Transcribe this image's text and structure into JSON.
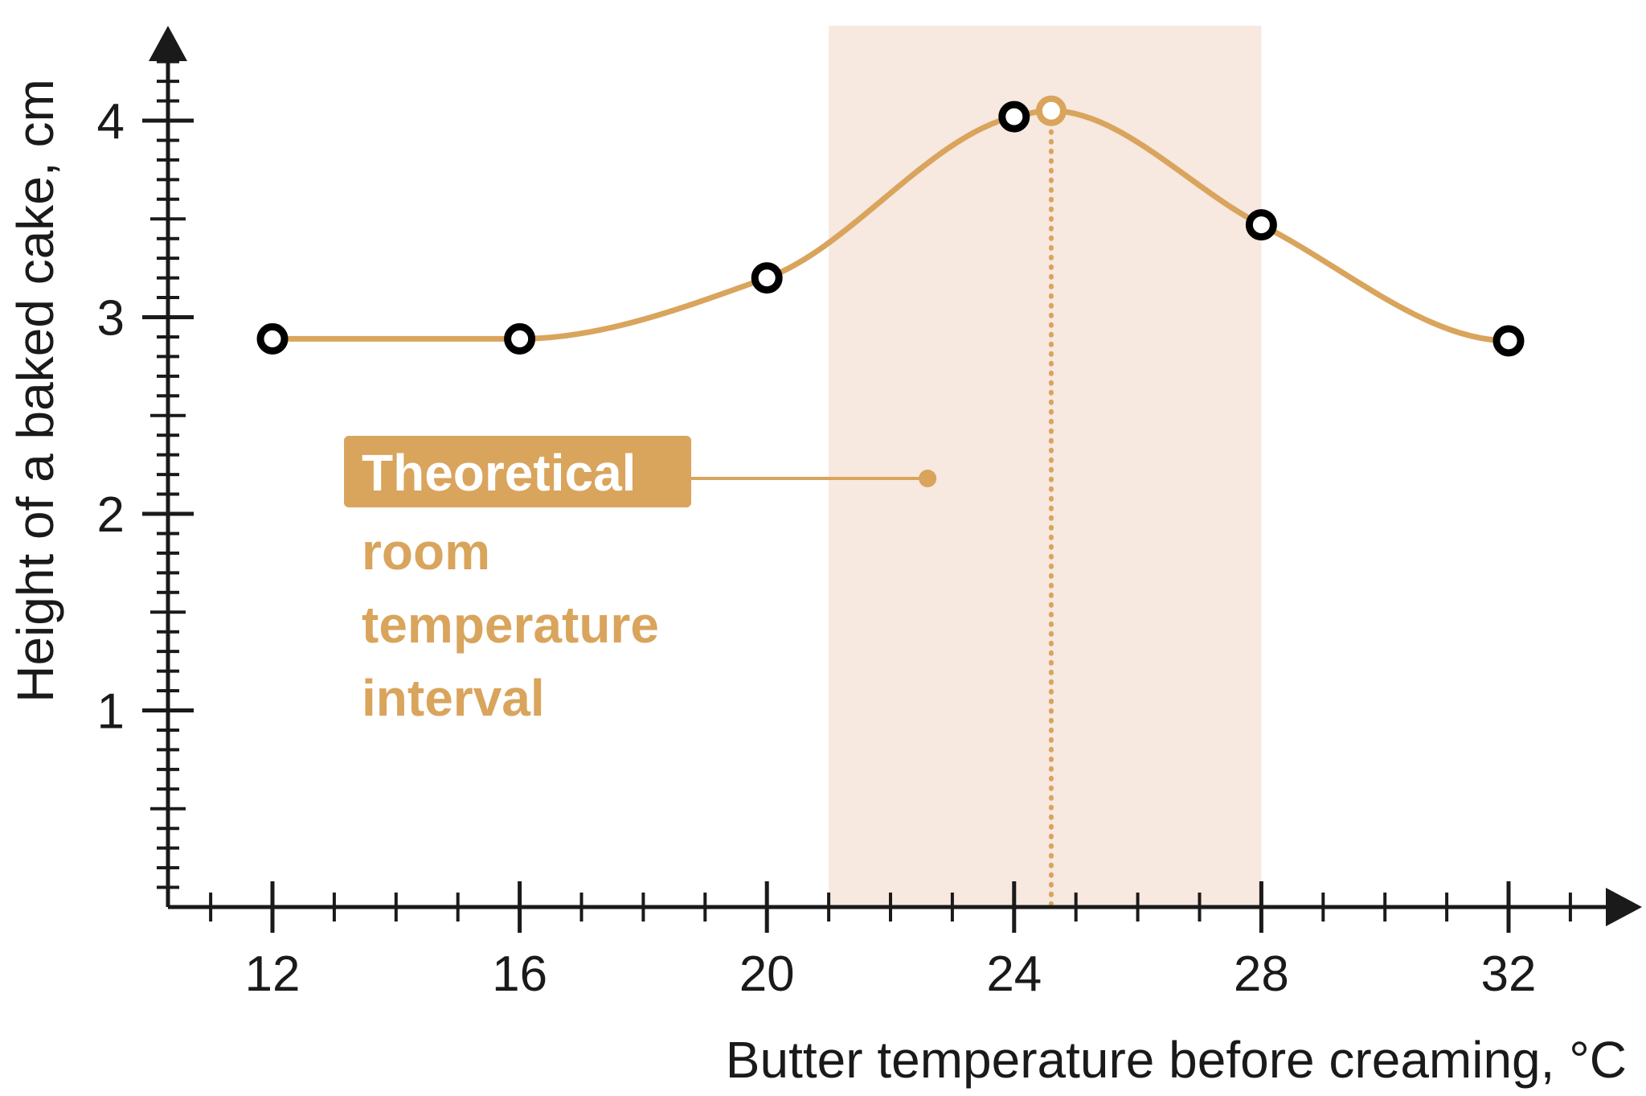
{
  "chart_data": {
    "type": "line",
    "title": "",
    "xlabel": "Butter temperature before creaming, °C",
    "ylabel": "Height of a baked cake, cm",
    "xlim": [
      10.3,
      34.5
    ],
    "ylim": [
      0,
      4.55
    ],
    "x_ticks": [
      "12",
      "16",
      "20",
      "24",
      "28",
      "32"
    ],
    "y_ticks": [
      "1",
      "2",
      "3",
      "4"
    ],
    "x_tick_values": [
      12,
      16,
      20,
      24,
      28,
      32
    ],
    "y_tick_values": [
      1,
      2,
      3,
      4
    ],
    "x_minor_step": 1,
    "y_minor_step": 0.1,
    "grid": false,
    "series": [
      {
        "x": [
          12,
          16,
          20,
          24,
          28,
          32
        ],
        "values": [
          2.89,
          2.89,
          3.2,
          4.02,
          3.47,
          2.88
        ]
      }
    ],
    "peak": {
      "x": 24.6,
      "y": 4.05
    },
    "shaded_interval": {
      "x_start": 21,
      "x_end": 28
    },
    "annotation": {
      "label_highlight": "Theoretical",
      "label_lines": [
        "room",
        "temperature",
        "interval"
      ],
      "pointer_y": 2.18,
      "pointer_x_end": 22.6
    },
    "colors": {
      "curve": "#d9a45c",
      "shade": "#f7e8e0",
      "axis": "#1a1a1a",
      "point_fill": "#ffffff",
      "point_stroke": "#000000",
      "annotation": "#d9a45c"
    }
  }
}
